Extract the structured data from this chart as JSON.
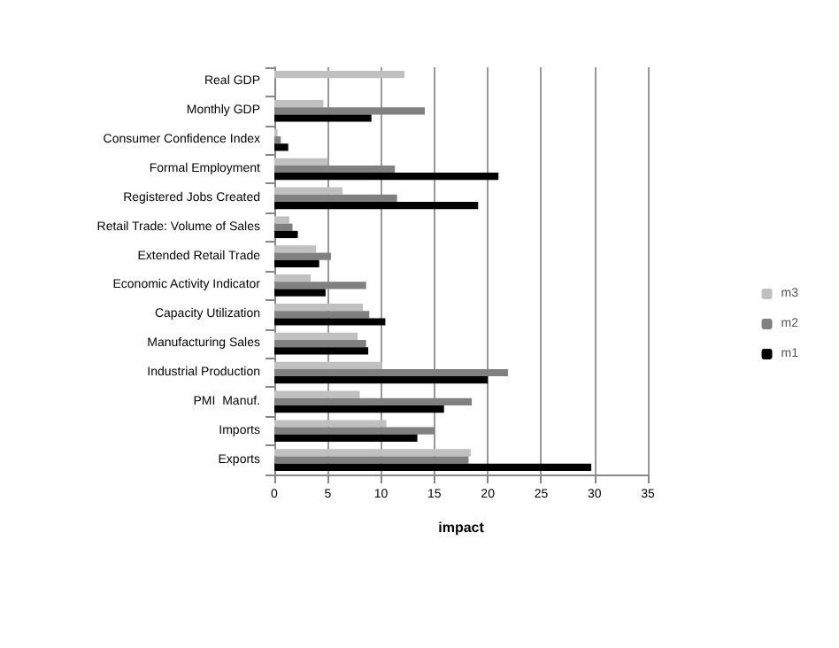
{
  "chart_data": {
    "type": "bar",
    "orientation": "horizontal",
    "xlabel": "impact",
    "categories": [
      "Real GDP",
      "Monthly GDP",
      "Consumer Confidence Index",
      "Formal Employment",
      "Registered Jobs Created",
      "Retail Trade: Volume of Sales",
      "Extended Retail Trade",
      "Economic Activity Indicator",
      "Capacity Utilization",
      "Manufacturing Sales",
      "Industrial Production",
      "PMI  Manuf.",
      "Imports",
      "Exports"
    ],
    "series": [
      {
        "name": "m3",
        "color": "#c0c0c0",
        "values": [
          12.2,
          4.6,
          0.3,
          5.0,
          6.4,
          1.4,
          3.9,
          3.4,
          8.3,
          7.8,
          10.1,
          8.0,
          10.5,
          18.4
        ]
      },
      {
        "name": "m2",
        "color": "#808080",
        "values": [
          null,
          14.1,
          0.6,
          11.3,
          11.5,
          1.7,
          5.3,
          8.6,
          8.9,
          8.6,
          21.9,
          18.5,
          15.0,
          18.2
        ]
      },
      {
        "name": "m1",
        "color": "#000000",
        "values": [
          null,
          9.1,
          1.3,
          21.0,
          19.1,
          2.2,
          4.2,
          4.8,
          10.4,
          8.8,
          20.0,
          15.9,
          13.4,
          29.7
        ]
      }
    ],
    "xlim": [
      0,
      35
    ],
    "xticks": [
      0,
      5,
      10,
      15,
      20,
      25,
      30,
      35
    ],
    "grid": "x",
    "legend": "right"
  }
}
